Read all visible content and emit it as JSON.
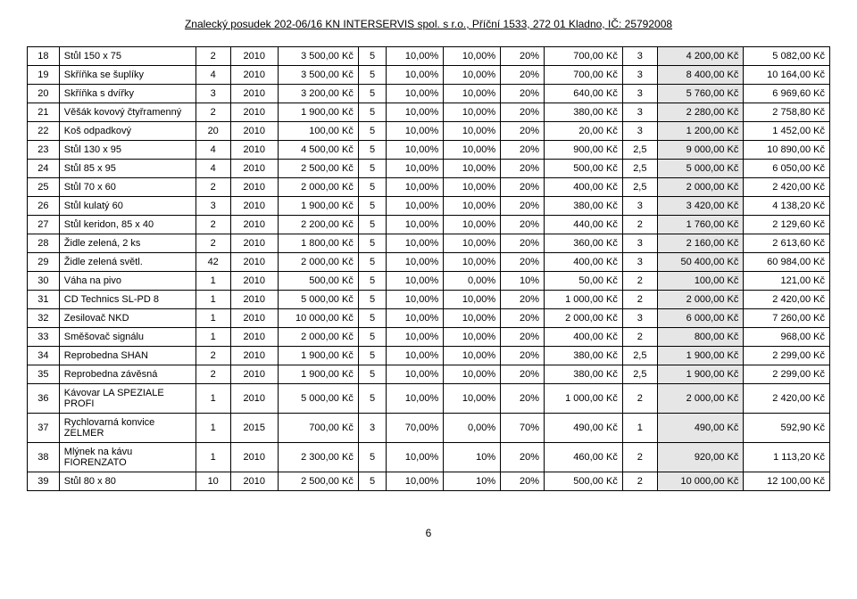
{
  "header": "Znalecký posudek 202-06/16 KN INTERSERVIS spol. s r.o., Příční 1533, 272 01 Kladno, IČ: 25792008",
  "footer": "6",
  "colors": {
    "highlight": "#e6e6e6",
    "border": "#000000",
    "text": "#000000",
    "background": "#ffffff"
  },
  "rows": [
    {
      "n": "18",
      "name": "Stůl 150 x 75",
      "qty": "2",
      "yr": "2010",
      "price": "3 500,00 Kč",
      "a": "5",
      "p1": "10,00%",
      "p2": "10,00%",
      "p3": "20%",
      "v1": "700,00 Kč",
      "k": "3",
      "v2": "4 200,00 Kč",
      "v3": "5 082,00 Kč"
    },
    {
      "n": "19",
      "name": "Skříňka se šuplíky",
      "qty": "4",
      "yr": "2010",
      "price": "3 500,00 Kč",
      "a": "5",
      "p1": "10,00%",
      "p2": "10,00%",
      "p3": "20%",
      "v1": "700,00 Kč",
      "k": "3",
      "v2": "8 400,00 Kč",
      "v3": "10 164,00 Kč"
    },
    {
      "n": "20",
      "name": "Skříňka s dvířky",
      "qty": "3",
      "yr": "2010",
      "price": "3 200,00 Kč",
      "a": "5",
      "p1": "10,00%",
      "p2": "10,00%",
      "p3": "20%",
      "v1": "640,00 Kč",
      "k": "3",
      "v2": "5 760,00 Kč",
      "v3": "6 969,60 Kč"
    },
    {
      "n": "21",
      "name": "Věšák kovový čtyřramenný",
      "qty": "2",
      "yr": "2010",
      "price": "1 900,00 Kč",
      "a": "5",
      "p1": "10,00%",
      "p2": "10,00%",
      "p3": "20%",
      "v1": "380,00 Kč",
      "k": "3",
      "v2": "2 280,00 Kč",
      "v3": "2 758,80 Kč"
    },
    {
      "n": "22",
      "name": "Koš odpadkový",
      "qty": "20",
      "yr": "2010",
      "price": "100,00 Kč",
      "a": "5",
      "p1": "10,00%",
      "p2": "10,00%",
      "p3": "20%",
      "v1": "20,00 Kč",
      "k": "3",
      "v2": "1 200,00 Kč",
      "v3": "1 452,00 Kč"
    },
    {
      "n": "23",
      "name": "Stůl 130 x 95",
      "qty": "4",
      "yr": "2010",
      "price": "4 500,00 Kč",
      "a": "5",
      "p1": "10,00%",
      "p2": "10,00%",
      "p3": "20%",
      "v1": "900,00 Kč",
      "k": "2,5",
      "v2": "9 000,00 Kč",
      "v3": "10 890,00 Kč"
    },
    {
      "n": "24",
      "name": "Stůl 85 x 95",
      "qty": "4",
      "yr": "2010",
      "price": "2 500,00 Kč",
      "a": "5",
      "p1": "10,00%",
      "p2": "10,00%",
      "p3": "20%",
      "v1": "500,00 Kč",
      "k": "2,5",
      "v2": "5 000,00 Kč",
      "v3": "6 050,00 Kč"
    },
    {
      "n": "25",
      "name": "Stůl 70 x 60",
      "qty": "2",
      "yr": "2010",
      "price": "2 000,00 Kč",
      "a": "5",
      "p1": "10,00%",
      "p2": "10,00%",
      "p3": "20%",
      "v1": "400,00 Kč",
      "k": "2,5",
      "v2": "2 000,00 Kč",
      "v3": "2 420,00 Kč"
    },
    {
      "n": "26",
      "name": "Stůl kulatý 60",
      "qty": "3",
      "yr": "2010",
      "price": "1 900,00 Kč",
      "a": "5",
      "p1": "10,00%",
      "p2": "10,00%",
      "p3": "20%",
      "v1": "380,00 Kč",
      "k": "3",
      "v2": "3 420,00 Kč",
      "v3": "4 138,20 Kč"
    },
    {
      "n": "27",
      "name": "Stůl keridon, 85 x 40",
      "qty": "2",
      "yr": "2010",
      "price": "2 200,00 Kč",
      "a": "5",
      "p1": "10,00%",
      "p2": "10,00%",
      "p3": "20%",
      "v1": "440,00 Kč",
      "k": "2",
      "v2": "1 760,00 Kč",
      "v3": "2 129,60 Kč"
    },
    {
      "n": "28",
      "name": "Židle zelená, 2 ks",
      "qty": "2",
      "yr": "2010",
      "price": "1 800,00 Kč",
      "a": "5",
      "p1": "10,00%",
      "p2": "10,00%",
      "p3": "20%",
      "v1": "360,00 Kč",
      "k": "3",
      "v2": "2 160,00 Kč",
      "v3": "2 613,60 Kč"
    },
    {
      "n": "29",
      "name": "Židle zelená světl.",
      "qty": "42",
      "yr": "2010",
      "price": "2 000,00 Kč",
      "a": "5",
      "p1": "10,00%",
      "p2": "10,00%",
      "p3": "20%",
      "v1": "400,00 Kč",
      "k": "3",
      "v2": "50 400,00 Kč",
      "v3": "60 984,00 Kč"
    },
    {
      "n": "30",
      "name": "Váha na pivo",
      "qty": "1",
      "yr": "2010",
      "price": "500,00 Kč",
      "a": "5",
      "p1": "10,00%",
      "p2": "0,00%",
      "p3": "10%",
      "v1": "50,00 Kč",
      "k": "2",
      "v2": "100,00 Kč",
      "v3": "121,00 Kč"
    },
    {
      "n": "31",
      "name": "CD Technics SL-PD 8",
      "qty": "1",
      "yr": "2010",
      "price": "5 000,00 Kč",
      "a": "5",
      "p1": "10,00%",
      "p2": "10,00%",
      "p3": "20%",
      "v1": "1 000,00 Kč",
      "k": "2",
      "v2": "2 000,00 Kč",
      "v3": "2 420,00 Kč"
    },
    {
      "n": "32",
      "name": "Zesilovač NKD",
      "qty": "1",
      "yr": "2010",
      "price": "10 000,00 Kč",
      "a": "5",
      "p1": "10,00%",
      "p2": "10,00%",
      "p3": "20%",
      "v1": "2 000,00 Kč",
      "k": "3",
      "v2": "6 000,00 Kč",
      "v3": "7 260,00 Kč"
    },
    {
      "n": "33",
      "name": "Směšovač signálu",
      "qty": "1",
      "yr": "2010",
      "price": "2 000,00 Kč",
      "a": "5",
      "p1": "10,00%",
      "p2": "10,00%",
      "p3": "20%",
      "v1": "400,00 Kč",
      "k": "2",
      "v2": "800,00 Kč",
      "v3": "968,00 Kč"
    },
    {
      "n": "34",
      "name": "Reprobedna SHAN",
      "qty": "2",
      "yr": "2010",
      "price": "1 900,00 Kč",
      "a": "5",
      "p1": "10,00%",
      "p2": "10,00%",
      "p3": "20%",
      "v1": "380,00 Kč",
      "k": "2,5",
      "v2": "1 900,00 Kč",
      "v3": "2 299,00 Kč"
    },
    {
      "n": "35",
      "name": "Reprobedna závěsná",
      "qty": "2",
      "yr": "2010",
      "price": "1 900,00 Kč",
      "a": "5",
      "p1": "10,00%",
      "p2": "10,00%",
      "p3": "20%",
      "v1": "380,00 Kč",
      "k": "2,5",
      "v2": "1 900,00 Kč",
      "v3": "2 299,00 Kč"
    },
    {
      "n": "36",
      "name": "Kávovar LA SPEZIALE PROFI",
      "qty": "1",
      "yr": "2010",
      "price": "5 000,00 Kč",
      "a": "5",
      "p1": "10,00%",
      "p2": "10,00%",
      "p3": "20%",
      "v1": "1 000,00 Kč",
      "k": "2",
      "v2": "2 000,00 Kč",
      "v3": "2 420,00 Kč"
    },
    {
      "n": "37",
      "name": "Rychlovarná konvice ZELMER",
      "qty": "1",
      "yr": "2015",
      "price": "700,00 Kč",
      "a": "3",
      "p1": "70,00%",
      "p2": "0,00%",
      "p3": "70%",
      "v1": "490,00 Kč",
      "k": "1",
      "v2": "490,00 Kč",
      "v3": "592,90 Kč"
    },
    {
      "n": "38",
      "name": "Mlýnek na kávu FIORENZATO",
      "qty": "1",
      "yr": "2010",
      "price": "2 300,00 Kč",
      "a": "5",
      "p1": "10,00%",
      "p2": "10%",
      "p3": "20%",
      "v1": "460,00 Kč",
      "k": "2",
      "v2": "920,00 Kč",
      "v3": "1 113,20 Kč"
    },
    {
      "n": "39",
      "name": "Stůl 80 x 80",
      "qty": "10",
      "yr": "2010",
      "price": "2 500,00 Kč",
      "a": "5",
      "p1": "10,00%",
      "p2": "10%",
      "p3": "20%",
      "v1": "500,00 Kč",
      "k": "2",
      "v2": "10 000,00 Kč",
      "v3": "12 100,00 Kč"
    }
  ]
}
